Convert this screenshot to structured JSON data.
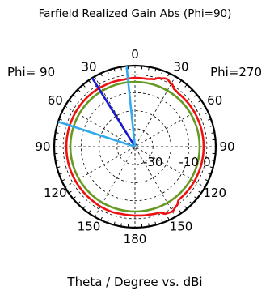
{
  "chart_data": {
    "type": "polar",
    "title": "Farfield Realized Gain Abs (Phi=90)",
    "xlabel": "Theta / Degree vs. dBi",
    "half_plane_labels": {
      "left": "Phi= 90",
      "right": "Phi=270"
    },
    "angle_tick_labels": [
      {
        "angle": 0,
        "text": "0"
      },
      {
        "angle": 30,
        "text": "30"
      },
      {
        "angle": 60,
        "text": "60"
      },
      {
        "angle": 90,
        "text": "90"
      },
      {
        "angle": 120,
        "text": "120"
      },
      {
        "angle": 150,
        "text": "150"
      },
      {
        "angle": 180,
        "text": "180"
      },
      {
        "angle": -150,
        "text": "150"
      },
      {
        "angle": -120,
        "text": "120"
      },
      {
        "angle": -90,
        "text": "90"
      },
      {
        "angle": -60,
        "text": "60"
      },
      {
        "angle": -30,
        "text": "30"
      }
    ],
    "radial_range_db": [
      -40,
      5
    ],
    "radial_tick_labels": [
      {
        "value": -30,
        "text": "-30"
      },
      {
        "value": -10,
        "text": "-10"
      },
      {
        "value": 0,
        "text": "0"
      }
    ],
    "grid": true,
    "series": [
      {
        "color": "#ee1111",
        "points": [
          [
            -180,
            -1.8
          ],
          [
            -170,
            -1.5
          ],
          [
            -160,
            -1.0
          ],
          [
            -155,
            1.0
          ],
          [
            -150,
            1.5
          ],
          [
            -145,
            0.2
          ],
          [
            -140,
            -1.8
          ],
          [
            -120,
            -1.8
          ],
          [
            -90,
            -1.8
          ],
          [
            -60,
            -1.8
          ],
          [
            -40,
            -1.8
          ],
          [
            -35,
            -1.4
          ],
          [
            -30,
            0.5
          ],
          [
            -25,
            1.6
          ],
          [
            -20,
            0.5
          ],
          [
            -15,
            -1.2
          ],
          [
            -10,
            -1.8
          ],
          [
            0,
            -1.8
          ],
          [
            10,
            -2.2
          ],
          [
            20,
            -2.0
          ],
          [
            40,
            -1.8
          ],
          [
            60,
            -1.8
          ],
          [
            90,
            -1.8
          ],
          [
            120,
            -1.8
          ],
          [
            140,
            -1.8
          ],
          [
            150,
            -1.6
          ],
          [
            160,
            -1.6
          ],
          [
            170,
            -1.9
          ],
          [
            180,
            -1.8
          ]
        ]
      },
      {
        "color": "#669922",
        "points": [
          [
            -180,
            -4.0
          ],
          [
            -90,
            -4.0
          ],
          [
            0,
            -4.0
          ],
          [
            90,
            -4.0
          ],
          [
            180,
            -4.0
          ]
        ]
      }
    ],
    "markers": [
      {
        "angle": 32,
        "color": "#1a1ad0"
      },
      {
        "angle": 6,
        "color": "#33aaee"
      },
      {
        "angle": 72,
        "color": "#33aaee"
      }
    ]
  }
}
